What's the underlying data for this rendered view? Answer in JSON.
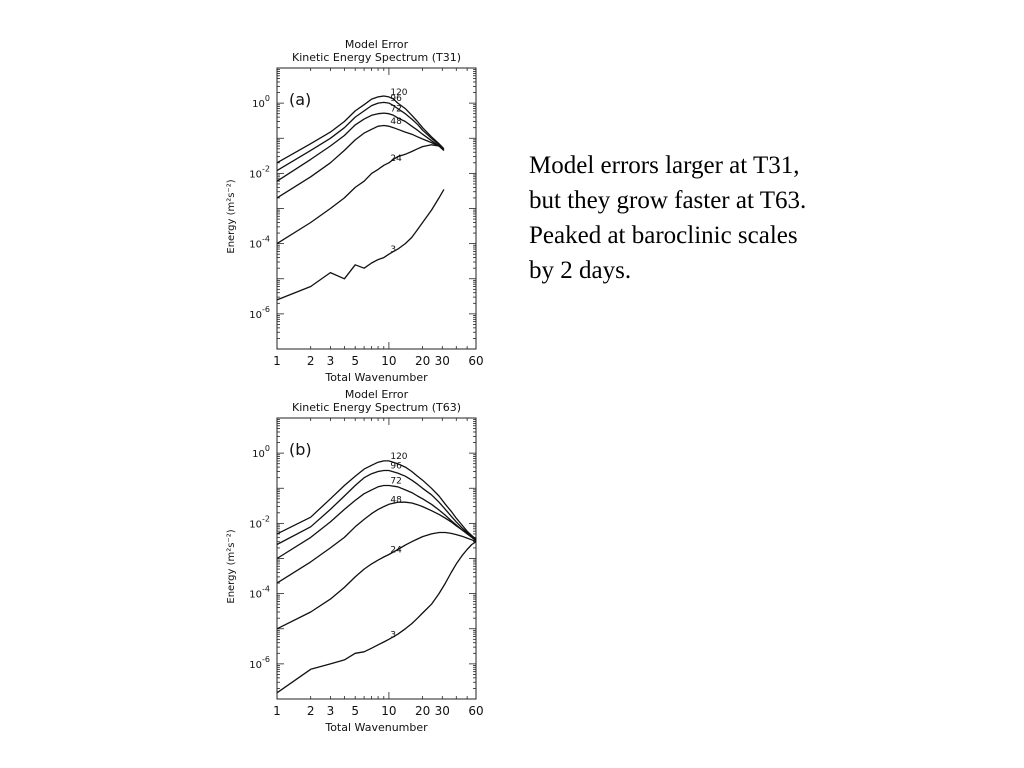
{
  "side_text": {
    "lines": [
      "Model errors larger at T31,",
      "but they grow faster at T63.",
      "Peaked at baroclinic scales",
      "by 2 days."
    ]
  },
  "chart_data": [
    {
      "type": "line",
      "panel_label": "(a)",
      "title": "Model Error",
      "subtitle": "Kinetic Energy Spectrum (T31)",
      "xlabel": "Total Wavenumber",
      "ylabel": "Energy (m²s⁻²)",
      "x_scale": "log",
      "y_scale": "log",
      "xlim": [
        1,
        60
      ],
      "ylim": [
        1e-07,
        10
      ],
      "x_ticks": [
        1,
        2,
        3,
        5,
        10,
        20,
        30,
        60
      ],
      "x_tick_labels": [
        "1",
        "2",
        "3",
        "5",
        "10",
        "20",
        "30",
        "60"
      ],
      "y_ticks": [
        1,
        0.01,
        0.0001,
        1e-06
      ],
      "y_tick_labels": [
        {
          "base": "10",
          "exp": "0"
        },
        {
          "base": "10",
          "exp": "-2"
        },
        {
          "base": "10",
          "exp": "-4"
        },
        {
          "base": "10",
          "exp": "-6"
        }
      ],
      "series": [
        {
          "name": "120",
          "x": [
            1,
            2,
            3,
            4,
            5,
            6,
            7,
            8,
            9,
            10,
            11,
            12,
            14,
            16,
            18,
            20,
            24,
            28,
            31
          ],
          "y": [
            0.02,
            0.07,
            0.15,
            0.3,
            0.6,
            0.9,
            1.3,
            1.5,
            1.6,
            1.5,
            1.3,
            1.0,
            0.7,
            0.45,
            0.3,
            0.2,
            0.11,
            0.07,
            0.05
          ]
        },
        {
          "name": "96",
          "x": [
            1,
            2,
            3,
            4,
            5,
            6,
            7,
            8,
            9,
            10,
            11,
            12,
            14,
            16,
            18,
            20,
            24,
            28,
            31
          ],
          "y": [
            0.012,
            0.045,
            0.1,
            0.2,
            0.4,
            0.6,
            0.85,
            1.0,
            1.05,
            1.0,
            0.85,
            0.7,
            0.5,
            0.35,
            0.25,
            0.17,
            0.1,
            0.065,
            0.045
          ]
        },
        {
          "name": "72",
          "x": [
            1,
            2,
            3,
            4,
            5,
            6,
            7,
            8,
            9,
            10,
            11,
            12,
            14,
            16,
            18,
            20,
            24,
            28,
            31
          ],
          "y": [
            0.006,
            0.025,
            0.06,
            0.12,
            0.24,
            0.35,
            0.45,
            0.5,
            0.52,
            0.5,
            0.45,
            0.38,
            0.3,
            0.22,
            0.17,
            0.13,
            0.085,
            0.06,
            0.045
          ]
        },
        {
          "name": "48",
          "x": [
            1,
            2,
            3,
            4,
            5,
            6,
            7,
            8,
            9,
            10,
            11,
            12,
            14,
            16,
            18,
            20,
            24,
            28,
            31
          ],
          "y": [
            0.002,
            0.008,
            0.02,
            0.045,
            0.09,
            0.14,
            0.18,
            0.22,
            0.23,
            0.22,
            0.2,
            0.18,
            0.15,
            0.13,
            0.11,
            0.095,
            0.075,
            0.06,
            0.045
          ]
        },
        {
          "name": "24",
          "x": [
            1,
            2,
            3,
            4,
            5,
            6,
            7,
            8,
            9,
            10,
            11,
            12,
            14,
            16,
            18,
            20,
            24,
            28,
            31
          ],
          "y": [
            0.0001,
            0.0004,
            0.001,
            0.002,
            0.004,
            0.006,
            0.01,
            0.013,
            0.017,
            0.02,
            0.025,
            0.03,
            0.035,
            0.042,
            0.05,
            0.058,
            0.065,
            0.06,
            0.05
          ]
        },
        {
          "name": "3",
          "x": [
            1,
            2,
            3,
            4,
            5,
            6,
            7,
            8,
            9,
            10,
            11,
            12,
            14,
            16,
            18,
            20,
            24,
            28,
            31
          ],
          "y": [
            2.5e-06,
            6e-06,
            1.5e-05,
            1e-05,
            2.5e-05,
            2e-05,
            2.8e-05,
            3.5e-05,
            4e-05,
            5e-05,
            6e-05,
            7e-05,
            0.0001,
            0.00015,
            0.00025,
            0.0004,
            0.0009,
            0.002,
            0.0035
          ]
        }
      ]
    },
    {
      "type": "line",
      "panel_label": "(b)",
      "title": "Model Error",
      "subtitle": "Kinetic Energy Spectrum (T63)",
      "xlabel": "Total Wavenumber",
      "ylabel": "Energy (m²s⁻²)",
      "x_scale": "log",
      "y_scale": "log",
      "xlim": [
        1,
        60
      ],
      "ylim": [
        1e-07,
        10
      ],
      "x_ticks": [
        1,
        2,
        3,
        5,
        10,
        20,
        30,
        60
      ],
      "x_tick_labels": [
        "1",
        "2",
        "3",
        "5",
        "10",
        "20",
        "30",
        "60"
      ],
      "y_ticks": [
        1,
        0.01,
        0.0001,
        1e-06
      ],
      "y_tick_labels": [
        {
          "base": "10",
          "exp": "0"
        },
        {
          "base": "10",
          "exp": "-2"
        },
        {
          "base": "10",
          "exp": "-4"
        },
        {
          "base": "10",
          "exp": "-6"
        }
      ],
      "series": [
        {
          "name": "120",
          "x": [
            1,
            2,
            3,
            4,
            5,
            6,
            7,
            8,
            9,
            10,
            12,
            14,
            16,
            18,
            20,
            24,
            28,
            32,
            36,
            40,
            45,
            50,
            55,
            60
          ],
          "y": [
            0.005,
            0.015,
            0.05,
            0.12,
            0.22,
            0.35,
            0.45,
            0.55,
            0.6,
            0.6,
            0.5,
            0.4,
            0.3,
            0.22,
            0.17,
            0.1,
            0.06,
            0.035,
            0.022,
            0.014,
            0.009,
            0.006,
            0.0045,
            0.0035
          ]
        },
        {
          "name": "96",
          "x": [
            1,
            2,
            3,
            4,
            5,
            6,
            7,
            8,
            9,
            10,
            12,
            14,
            16,
            18,
            20,
            24,
            28,
            32,
            36,
            40,
            45,
            50,
            55,
            60
          ],
          "y": [
            0.0025,
            0.008,
            0.025,
            0.06,
            0.12,
            0.2,
            0.26,
            0.3,
            0.32,
            0.32,
            0.27,
            0.22,
            0.17,
            0.13,
            0.1,
            0.065,
            0.04,
            0.025,
            0.016,
            0.011,
            0.0075,
            0.0055,
            0.0042,
            0.0033
          ]
        },
        {
          "name": "72",
          "x": [
            1,
            2,
            3,
            4,
            5,
            6,
            7,
            8,
            9,
            10,
            12,
            14,
            16,
            18,
            20,
            24,
            28,
            32,
            36,
            40,
            45,
            50,
            55,
            60
          ],
          "y": [
            0.001,
            0.004,
            0.011,
            0.025,
            0.045,
            0.07,
            0.09,
            0.11,
            0.12,
            0.12,
            0.11,
            0.09,
            0.075,
            0.06,
            0.05,
            0.035,
            0.024,
            0.017,
            0.012,
            0.009,
            0.0065,
            0.005,
            0.004,
            0.0032
          ]
        },
        {
          "name": "48",
          "x": [
            1,
            2,
            3,
            4,
            5,
            6,
            7,
            8,
            9,
            10,
            12,
            14,
            16,
            18,
            20,
            24,
            28,
            32,
            36,
            40,
            45,
            50,
            55,
            60
          ],
          "y": [
            0.0002,
            0.0008,
            0.002,
            0.004,
            0.008,
            0.013,
            0.019,
            0.025,
            0.03,
            0.035,
            0.04,
            0.04,
            0.038,
            0.034,
            0.03,
            0.023,
            0.018,
            0.014,
            0.011,
            0.0085,
            0.0065,
            0.0052,
            0.0042,
            0.0035
          ]
        },
        {
          "name": "24",
          "x": [
            1,
            2,
            3,
            4,
            5,
            6,
            7,
            8,
            9,
            10,
            12,
            14,
            16,
            18,
            20,
            24,
            28,
            32,
            36,
            40,
            45,
            50,
            55,
            60
          ],
          "y": [
            1e-05,
            3e-05,
            7e-05,
            0.00015,
            0.0003,
            0.0005,
            0.0007,
            0.0009,
            0.0011,
            0.0013,
            0.0018,
            0.0024,
            0.003,
            0.0036,
            0.0042,
            0.005,
            0.0055,
            0.0055,
            0.0052,
            0.0048,
            0.0043,
            0.0038,
            0.0034,
            0.003
          ]
        },
        {
          "name": "3",
          "x": [
            1,
            2,
            3,
            4,
            5,
            6,
            7,
            8,
            9,
            10,
            12,
            14,
            16,
            18,
            20,
            24,
            28,
            32,
            36,
            40,
            45,
            50,
            55,
            60
          ],
          "y": [
            1.5e-07,
            7e-07,
            1e-06,
            1.3e-06,
            2e-06,
            2.2e-06,
            2.8e-06,
            3.5e-06,
            4.2e-06,
            5e-06,
            7e-06,
            1e-05,
            1.4e-05,
            2e-05,
            2.8e-05,
            5e-05,
            0.0001,
            0.0002,
            0.0004,
            0.0007,
            0.0012,
            0.0018,
            0.0025,
            0.003
          ]
        }
      ]
    }
  ]
}
